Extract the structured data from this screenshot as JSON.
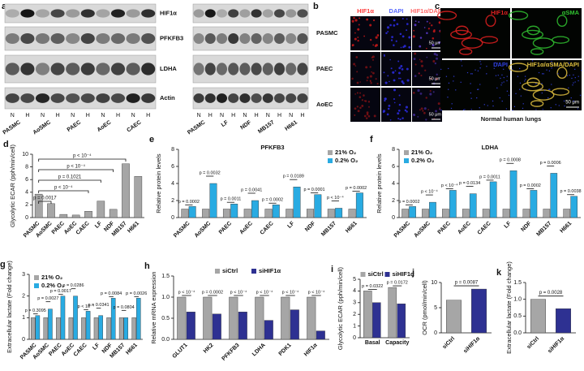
{
  "figure_a": {
    "label": "a",
    "proteins": [
      "HIF1α",
      "PFKFB3",
      "LDHA",
      "Actin"
    ],
    "lanes": [
      "N",
      "H"
    ],
    "left_cells": [
      "PASMC",
      "AoSMC",
      "PAEC",
      "AoEC",
      "CAEC"
    ],
    "right_cells": [
      "PASMC",
      "LF",
      "NDF",
      "MB157",
      "H661"
    ]
  },
  "figure_b": {
    "label": "b",
    "columns": [
      "HIF1α",
      "DAPI",
      "HIF1α/DAPI"
    ],
    "rows": [
      "PASMC",
      "PAEC",
      "AoEC"
    ],
    "scale": "50 μm"
  },
  "figure_c": {
    "label": "c",
    "panels": [
      "HIF1α",
      "αSMA",
      "DAPI",
      "HIF1α/αSMA/DAPI"
    ],
    "scale": "50 μm",
    "caption": "Normal human lungs"
  },
  "chart_data": [
    {
      "type": "bar",
      "panel": "d",
      "ylabel": "Glycolytic ECAR (pph/min/cell)",
      "categories": [
        "PASMC",
        "AoSMC",
        "PAEC",
        "AoEC",
        "CAEC",
        "LF",
        "NDF",
        "MB157",
        "H661"
      ],
      "values": [
        3.7,
        2.2,
        0.5,
        0.4,
        1.0,
        2.6,
        1.3,
        8.5,
        6.5
      ],
      "color": "#a6a6a6",
      "ylim": [
        0,
        10
      ],
      "yticks": [
        0,
        2,
        4,
        6,
        8,
        10
      ],
      "annotations": [
        "p = 0.0017",
        "p < 10⁻⁴",
        "p = 0.1021",
        "p < 10⁻⁴",
        "p < 10⁻⁴"
      ]
    },
    {
      "type": "bar",
      "panel": "e",
      "title": "PFKFB3",
      "ylabel": "Relative protein levels",
      "categories": [
        "PASMC",
        "AoSMC",
        "PAEC",
        "AoEC",
        "CAEC",
        "LF",
        "NDF",
        "MB157",
        "H661"
      ],
      "series": [
        {
          "name": "21% O₂",
          "color": "#a6a6a6",
          "values": [
            1,
            1,
            1,
            1,
            1,
            1,
            1,
            1,
            1
          ]
        },
        {
          "name": "0.2% O₂",
          "color": "#29abe2",
          "values": [
            1.3,
            4.0,
            1.6,
            2.0,
            1.5,
            3.6,
            2.7,
            1.1,
            2.9
          ]
        }
      ],
      "ylim": [
        0,
        8
      ],
      "yticks": [
        0,
        2,
        4,
        6,
        8
      ],
      "legend": "upper right",
      "annotations": [
        "p = 0.0002",
        "p = 0.0032",
        "p = 0.0011",
        "p = 0.0041",
        "p = 0.0002",
        "p = 0.0189",
        "p = 0.0001",
        "p < 10⁻⁴",
        "p = 0.0002"
      ]
    },
    {
      "type": "bar",
      "panel": "f",
      "title": "LDHA",
      "ylabel": "Relative protein levels",
      "categories": [
        "PASMC",
        "AoSMC",
        "PAEC",
        "AoEC",
        "CAEC",
        "LF",
        "NDF",
        "MB157",
        "H661"
      ],
      "series": [
        {
          "name": "21% O₂",
          "color": "#a6a6a6",
          "values": [
            1,
            1,
            1,
            1,
            1,
            1,
            1,
            1,
            1
          ]
        },
        {
          "name": "0.2% O₂",
          "color": "#29abe2",
          "values": [
            1.3,
            1.8,
            3.2,
            2.8,
            4.2,
            5.5,
            3.2,
            5.2,
            2.5
          ]
        }
      ],
      "ylim": [
        0,
        8
      ],
      "yticks": [
        0,
        2,
        4,
        6,
        8
      ],
      "legend": "upper left",
      "annotations": [
        "p = 0.0002",
        "p < 10⁻⁴",
        "p < 10⁻⁴",
        "p = 0.0134",
        "p = 0.0011",
        "p = 0.0008",
        "p = 0.0002",
        "p = 0.0006",
        "p = 0.0038"
      ]
    },
    {
      "type": "bar",
      "panel": "g",
      "ylabel": "Extracellular lactate (Fold change)",
      "categories": [
        "PASMC",
        "AoSMC",
        "PAEC",
        "AoEC",
        "CAEC",
        "LF",
        "NDF",
        "MB157",
        "H661"
      ],
      "series": [
        {
          "name": "21% O₂",
          "color": "#a6a6a6",
          "values": [
            1,
            1,
            1,
            1,
            1,
            1,
            1,
            1,
            1
          ]
        },
        {
          "name": "0.2% O₂",
          "color": "#29abe2",
          "values": [
            1.1,
            1.4,
            2.0,
            2.0,
            1.3,
            1.1,
            1.9,
            1.0,
            1.9
          ]
        }
      ],
      "ylim": [
        0,
        3
      ],
      "yticks": [
        0,
        1,
        2,
        3
      ],
      "legend": "upper left",
      "annotations": [
        "p = 0.3095",
        "p = 0.0027",
        "p = 0.0017",
        "p = 0.0286",
        "p < 10⁻⁴",
        "p = 0.0341",
        "p = 0.0084",
        "p = 0.0804",
        "p = 0.0026"
      ]
    },
    {
      "type": "bar",
      "panel": "h",
      "ylabel": "Relative mRNA expression",
      "categories": [
        "GLUT1",
        "HK2",
        "PFKFB3",
        "LDHA",
        "PDK1",
        "HIF1α"
      ],
      "series": [
        {
          "name": "siCtrl",
          "color": "#a6a6a6",
          "values": [
            1,
            1,
            1,
            1,
            1,
            1
          ]
        },
        {
          "name": "siHIF1α",
          "color": "#2e3192",
          "values": [
            0.65,
            0.6,
            0.65,
            0.45,
            0.7,
            0.2
          ]
        }
      ],
      "ylim": [
        0,
        1.5
      ],
      "yticks": [
        {
          "value": 0,
          "label": "0.0"
        },
        0.5,
        {
          "value": 1,
          "label": "1.0"
        },
        1.5
      ],
      "legend": "upper center",
      "annotations": [
        "p < 10⁻⁴",
        "p = 0.0002",
        "p < 10⁻⁴",
        "p < 10⁻⁴",
        "p < 10⁻⁴",
        "p < 10⁻⁴"
      ]
    },
    {
      "type": "bar",
      "panel": "i",
      "ylabel": "Glycolytic ECAR (pph/min/cell)",
      "categories": [
        "Basal",
        "Capacity"
      ],
      "series": [
        {
          "name": "siCtrl",
          "color": "#a6a6a6",
          "values": [
            4.0,
            4.3
          ]
        },
        {
          "name": "siHIF1α",
          "color": "#2e3192",
          "values": [
            3.0,
            2.9
          ]
        }
      ],
      "ylim": [
        0,
        5
      ],
      "yticks": [
        0,
        1,
        2,
        3,
        4,
        5
      ],
      "legend": "upper center",
      "annotations": [
        "p = 0.0322",
        "p = 0.0172"
      ]
    },
    {
      "type": "bar",
      "panel": "j",
      "ylabel": "OCR (pmol/min/cell)",
      "categories": [
        "siCtrl",
        "siHIF1α"
      ],
      "values": [
        6.5,
        8.7
      ],
      "colors": [
        "#a6a6a6",
        "#2e3192"
      ],
      "ylim": [
        0,
        10
      ],
      "yticks": [
        0,
        5,
        10
      ],
      "annotation": "p = 0.0087"
    },
    {
      "type": "bar",
      "panel": "k",
      "ylabel": "Extracellular lactate (Fold change)",
      "categories": [
        "siCtrl",
        "siHIF1α"
      ],
      "values": [
        1.0,
        0.72
      ],
      "colors": [
        "#a6a6a6",
        "#2e3192"
      ],
      "ylim": [
        0,
        1.5
      ],
      "yticks": [
        {
          "value": 0,
          "label": "0.0"
        },
        0.5,
        {
          "value": 1,
          "label": "1.0"
        },
        1.5
      ],
      "annotation": "p = 0.0028"
    }
  ]
}
